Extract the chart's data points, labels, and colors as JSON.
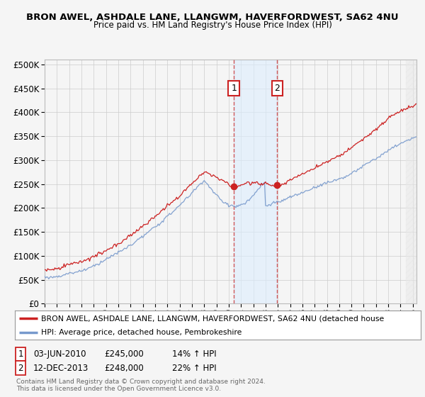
{
  "title1": "BRON AWEL, ASHDALE LANE, LLANGWM, HAVERFORDWEST, SA62 4NU",
  "title2": "Price paid vs. HM Land Registry's House Price Index (HPI)",
  "legend_line1": "BRON AWEL, ASHDALE LANE, LLANGWM, HAVERFORDWEST, SA62 4NU (detached house",
  "legend_line2": "HPI: Average price, detached house, Pembrokeshire",
  "footnote": "Contains HM Land Registry data © Crown copyright and database right 2024.\nThis data is licensed under the Open Government Licence v3.0.",
  "sale1_date": "03-JUN-2010",
  "sale1_price": "£245,000",
  "sale1_hpi": "14% ↑ HPI",
  "sale2_date": "12-DEC-2013",
  "sale2_price": "£248,000",
  "sale2_hpi": "22% ↑ HPI",
  "sale1_x": 2010.42,
  "sale1_y": 245000,
  "sale2_x": 2013.95,
  "sale2_y": 248000,
  "ylim": [
    0,
    510000
  ],
  "yticks": [
    0,
    50000,
    100000,
    150000,
    200000,
    250000,
    300000,
    350000,
    400000,
    450000,
    500000
  ],
  "xlim_start": 1995.0,
  "xlim_end": 2025.3,
  "hpi_color": "#7799cc",
  "price_color": "#cc2222",
  "marker_color": "#cc2222",
  "dashed_line_color": "#cc3333",
  "shade_color": "#ddeeff",
  "background_color": "#f5f5f5",
  "plot_bg_color": "#f5f5f5",
  "grid_color": "#cccccc",
  "hatch_start": 2024.42
}
